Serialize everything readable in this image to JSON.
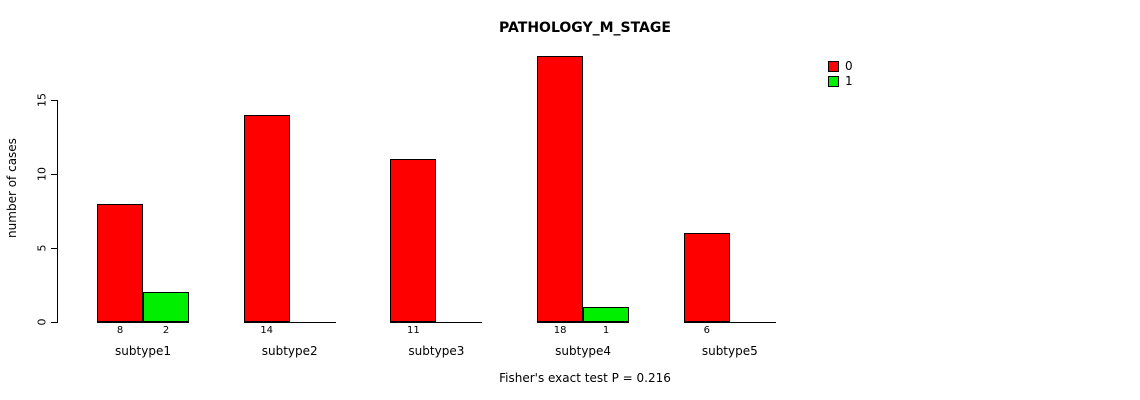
{
  "title": "PATHOLOGY_M_STAGE",
  "ylabel": "number of cases",
  "footer": "Fisher's exact test P = 0.216",
  "chart_data": {
    "type": "bar",
    "title": "PATHOLOGY_M_STAGE",
    "xlabel": "",
    "ylabel": "number of cases",
    "categories": [
      "subtype1",
      "subtype2",
      "subtype3",
      "subtype4",
      "subtype5"
    ],
    "series": [
      {
        "name": "0",
        "color": "#ff0000",
        "values": [
          8,
          14,
          11,
          18,
          6
        ]
      },
      {
        "name": "1",
        "color": "#00ee00",
        "values": [
          2,
          0,
          0,
          1,
          0
        ]
      }
    ],
    "bar_value_labels": [
      [
        8,
        2
      ],
      [
        14,
        0
      ],
      [
        11,
        0
      ],
      [
        18,
        1
      ],
      [
        6,
        0
      ]
    ],
    "yticks": [
      0,
      5,
      10,
      15
    ],
    "ylim": [
      0,
      18
    ],
    "grid": false,
    "legend_position": "top-right",
    "annotation": "Fisher's exact test P = 0.216"
  }
}
